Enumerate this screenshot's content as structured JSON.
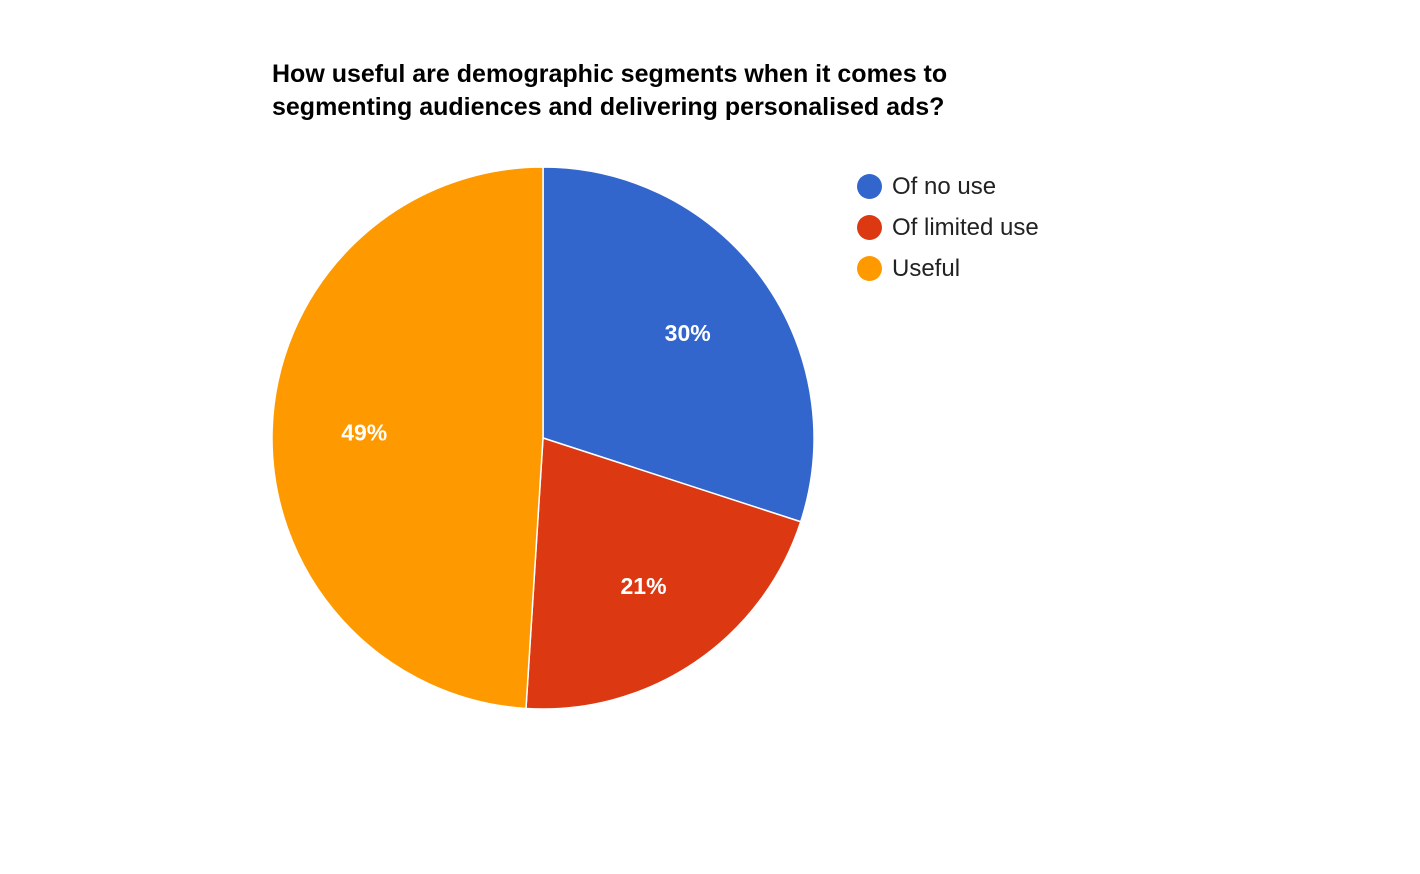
{
  "chart_data": {
    "type": "pie",
    "title_lines": [
      "How useful are demographic segments when it comes to",
      "segmenting audiences and delivering personalised ads?"
    ],
    "categories": [
      "Of no use",
      "Of limited use",
      "Useful"
    ],
    "values": [
      30,
      21,
      49
    ],
    "labels": [
      "30%",
      "21%",
      "49%"
    ],
    "colors": [
      "#3366cc",
      "#dc3912",
      "#ff9900"
    ],
    "legend_position": "right",
    "start_angle": "12 o'clock, clockwise"
  }
}
